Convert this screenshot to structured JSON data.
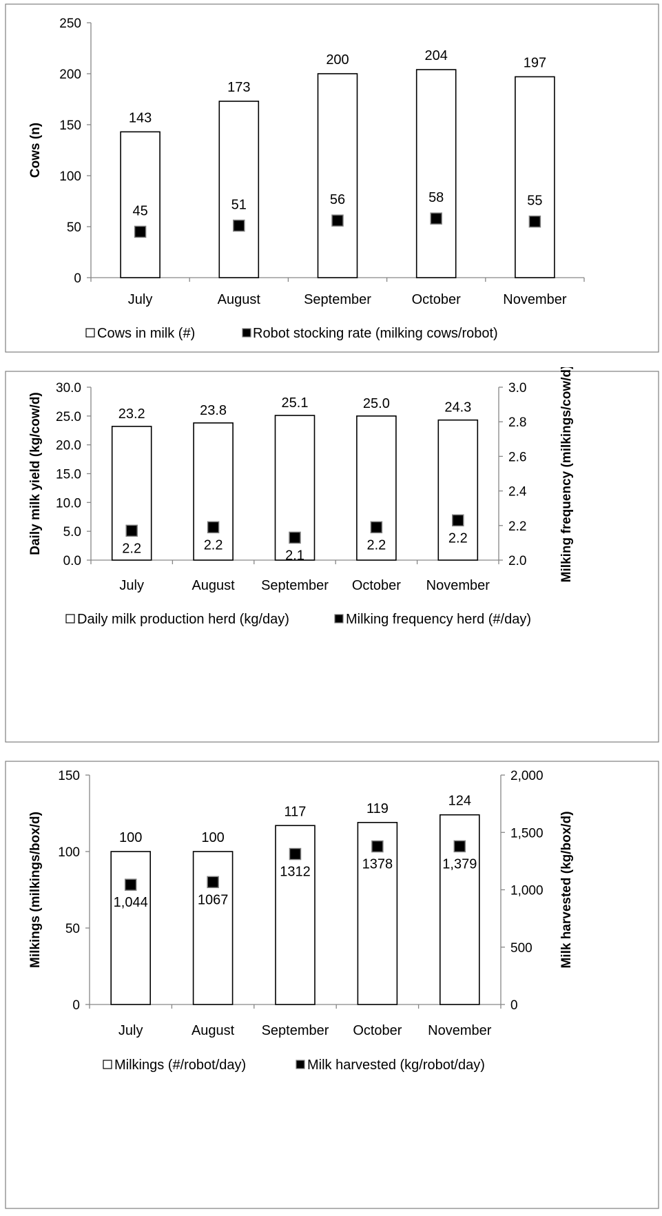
{
  "chart_data": [
    {
      "type": "bar",
      "categories": [
        "July",
        "August",
        "September",
        "October",
        "November"
      ],
      "ylabel": "Cows (n)",
      "ylim": [
        0,
        250
      ],
      "yticks": [
        0,
        50,
        100,
        150,
        200,
        250
      ],
      "ytick_labels": [
        "0",
        "50",
        "100",
        "150",
        "200",
        "250"
      ],
      "series": [
        {
          "name": "Cows in milk (#)",
          "kind": "bar",
          "axis": "left",
          "values": [
            143,
            173,
            200,
            204,
            197
          ],
          "labels": [
            "143",
            "173",
            "200",
            "204",
            "197"
          ]
        },
        {
          "name": "Robot stocking rate (milking cows/robot)",
          "kind": "marker",
          "axis": "left",
          "values": [
            45,
            51,
            56,
            58,
            55
          ],
          "labels": [
            "45",
            "51",
            "56",
            "58",
            "55"
          ]
        }
      ],
      "legend_position": "bottom",
      "grid": false
    },
    {
      "type": "bar",
      "categories": [
        "July",
        "August",
        "September",
        "October",
        "November"
      ],
      "ylabel": "Daily milk yield (kg/cow/d)",
      "ylabel_right": "Milking frequency (milkings/cow/d)",
      "ylim": [
        0,
        30
      ],
      "ylim_right": [
        2.0,
        3.0
      ],
      "yticks": [
        0,
        5,
        10,
        15,
        20,
        25,
        30
      ],
      "ytick_labels": [
        "0.0",
        "5.0",
        "10.0",
        "15.0",
        "20.0",
        "25.0",
        "30.0"
      ],
      "yticks_right": [
        2.0,
        2.2,
        2.4,
        2.6,
        2.8,
        3.0
      ],
      "ytick_labels_right": [
        "2.0",
        "2.2",
        "2.4",
        "2.6",
        "2.8",
        "3.0"
      ],
      "series": [
        {
          "name": "Daily milk production herd (kg/day)",
          "kind": "bar",
          "axis": "left",
          "values": [
            23.2,
            23.8,
            25.1,
            25.0,
            24.3
          ],
          "labels": [
            "23.2",
            "23.8",
            "25.1",
            "25.0",
            "24.3"
          ]
        },
        {
          "name": "Milking frequency herd (#/day)",
          "kind": "marker",
          "axis": "right",
          "values": [
            2.17,
            2.19,
            2.13,
            2.19,
            2.23
          ],
          "labels": [
            "2.2",
            "2.2",
            "2.1",
            "2.2",
            "2.2"
          ]
        }
      ],
      "legend_position": "bottom",
      "grid": false
    },
    {
      "type": "bar",
      "categories": [
        "July",
        "August",
        "September",
        "October",
        "November"
      ],
      "ylabel": "Milkings (milkings/box/d)",
      "ylabel_right": "Milk harvested (kg/box/d)",
      "ylim": [
        0,
        150
      ],
      "ylim_right": [
        0,
        2000
      ],
      "yticks": [
        0,
        50,
        100,
        150
      ],
      "ytick_labels": [
        "0",
        "50",
        "100",
        "150"
      ],
      "yticks_right": [
        0,
        500,
        1000,
        1500,
        2000
      ],
      "ytick_labels_right": [
        "0",
        "500",
        "1,000",
        "1,500",
        "2,000"
      ],
      "series": [
        {
          "name": "Milkings (#/robot/day)",
          "kind": "bar",
          "axis": "left",
          "values": [
            100,
            100,
            117,
            119,
            124
          ],
          "labels": [
            "100",
            "100",
            "117",
            "119",
            "124"
          ]
        },
        {
          "name": "Milk harvested (kg/robot/day)",
          "kind": "marker",
          "axis": "right",
          "values": [
            1044,
            1067,
            1312,
            1378,
            1379
          ],
          "labels": [
            "1,044",
            "1067",
            "1312",
            "1378",
            "1,379"
          ]
        }
      ],
      "legend_position": "bottom",
      "grid": false
    }
  ]
}
